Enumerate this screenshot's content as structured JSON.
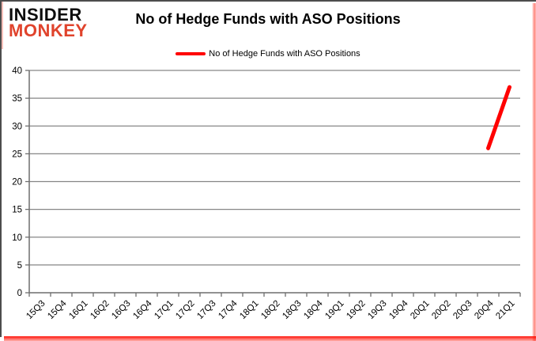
{
  "brand": {
    "line1": "INSIDER",
    "line2": "MONKEY",
    "line1_color": "#0d0d0d",
    "line2_color": "#e0432c"
  },
  "header": {
    "title": "No of Hedge Funds with ASO Positions"
  },
  "legend": {
    "label": "No of Hedge Funds with ASO Positions",
    "line_color": "#ff0000"
  },
  "chart_data": {
    "type": "line",
    "title": "No of Hedge Funds with ASO Positions",
    "categories": [
      "15Q3",
      "15Q4",
      "16Q1",
      "16Q2",
      "16Q3",
      "16Q4",
      "17Q1",
      "17Q2",
      "17Q3",
      "17Q4",
      "18Q1",
      "18Q2",
      "18Q3",
      "18Q4",
      "19Q1",
      "19Q2",
      "19Q3",
      "19Q4",
      "20Q1",
      "20Q2",
      "20Q3",
      "20Q4",
      "21Q1"
    ],
    "series": [
      {
        "name": "No of Hedge Funds with ASO Positions",
        "color": "#ff0000",
        "values": [
          null,
          null,
          null,
          null,
          null,
          null,
          null,
          null,
          null,
          null,
          null,
          null,
          null,
          null,
          null,
          null,
          null,
          null,
          null,
          null,
          null,
          26,
          37
        ]
      }
    ],
    "ylim": [
      0,
      40
    ],
    "yticks": [
      0,
      5,
      10,
      15,
      20,
      25,
      30,
      35,
      40
    ],
    "xlabel": "",
    "ylabel": "",
    "grid": true,
    "legend_position": "top",
    "gridline_color": "#868686",
    "axis_color": "#6e6e6e",
    "tick_label_color": "#000000"
  }
}
